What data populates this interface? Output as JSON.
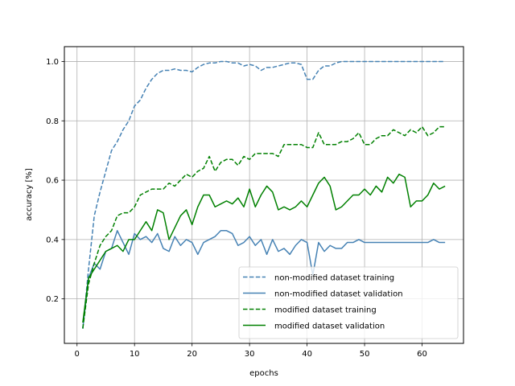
{
  "chart_data": {
    "type": "line",
    "title": "",
    "xlabel": "epochs",
    "ylabel": "accuracy [%]",
    "xlim": [
      -2.2,
      67.2
    ],
    "ylim": [
      0.05,
      1.05
    ],
    "xticks": [
      0,
      10,
      20,
      30,
      40,
      50,
      60
    ],
    "yticks": [
      0.2,
      0.4,
      0.6,
      0.8,
      1.0
    ],
    "xtick_labels": [
      "0",
      "10",
      "20",
      "30",
      "40",
      "50",
      "60"
    ],
    "ytick_labels": [
      "0.2",
      "0.4",
      "0.6",
      "0.8",
      "1.0"
    ],
    "grid": true,
    "legend_position": "lower-right",
    "x": [
      1,
      2,
      3,
      4,
      5,
      6,
      7,
      8,
      9,
      10,
      11,
      12,
      13,
      14,
      15,
      16,
      17,
      18,
      19,
      20,
      21,
      22,
      23,
      24,
      25,
      26,
      27,
      28,
      29,
      30,
      31,
      32,
      33,
      34,
      35,
      36,
      37,
      38,
      39,
      40,
      41,
      42,
      43,
      44,
      45,
      46,
      47,
      48,
      49,
      50,
      51,
      52,
      53,
      54,
      55,
      56,
      57,
      58,
      59,
      60,
      61,
      62,
      63,
      64
    ],
    "series": [
      {
        "name": "non-modified dataset training",
        "color": "#4682b4",
        "dash": "dashed",
        "values": [
          0.1,
          0.3,
          0.48,
          0.56,
          0.63,
          0.7,
          0.73,
          0.77,
          0.8,
          0.85,
          0.87,
          0.91,
          0.94,
          0.96,
          0.97,
          0.97,
          0.975,
          0.97,
          0.97,
          0.965,
          0.98,
          0.99,
          0.995,
          0.995,
          1.0,
          1.0,
          0.995,
          0.995,
          0.985,
          0.99,
          0.985,
          0.97,
          0.98,
          0.98,
          0.985,
          0.99,
          0.995,
          0.995,
          0.99,
          0.94,
          0.94,
          0.97,
          0.985,
          0.985,
          0.995,
          1.0,
          1.0,
          1.0,
          1.0,
          1.0,
          1.0,
          1.0,
          1.0,
          1.0,
          1.0,
          1.0,
          1.0,
          1.0,
          1.0,
          1.0,
          1.0,
          1.0,
          1.0,
          1.0
        ]
      },
      {
        "name": "non-modified dataset validation",
        "color": "#4682b4",
        "dash": "solid",
        "values": [
          0.1,
          0.27,
          0.32,
          0.3,
          0.36,
          0.37,
          0.43,
          0.39,
          0.35,
          0.42,
          0.4,
          0.41,
          0.39,
          0.42,
          0.37,
          0.36,
          0.41,
          0.38,
          0.4,
          0.39,
          0.35,
          0.39,
          0.4,
          0.41,
          0.43,
          0.43,
          0.42,
          0.38,
          0.39,
          0.41,
          0.38,
          0.4,
          0.35,
          0.4,
          0.36,
          0.37,
          0.35,
          0.38,
          0.4,
          0.39,
          0.28,
          0.39,
          0.36,
          0.38,
          0.37,
          0.37,
          0.39,
          0.39,
          0.4,
          0.39,
          0.39,
          0.39,
          0.39,
          0.39,
          0.39,
          0.39,
          0.39,
          0.39,
          0.39,
          0.39,
          0.39,
          0.4,
          0.39,
          0.39
        ]
      },
      {
        "name": "modified dataset training",
        "color": "#008000",
        "dash": "dashed",
        "values": [
          0.1,
          0.25,
          0.32,
          0.38,
          0.41,
          0.43,
          0.48,
          0.49,
          0.49,
          0.51,
          0.55,
          0.56,
          0.57,
          0.57,
          0.57,
          0.59,
          0.58,
          0.6,
          0.62,
          0.61,
          0.63,
          0.64,
          0.68,
          0.63,
          0.66,
          0.67,
          0.67,
          0.65,
          0.68,
          0.67,
          0.69,
          0.69,
          0.69,
          0.69,
          0.68,
          0.72,
          0.72,
          0.72,
          0.72,
          0.71,
          0.71,
          0.76,
          0.72,
          0.72,
          0.72,
          0.73,
          0.73,
          0.74,
          0.76,
          0.72,
          0.72,
          0.74,
          0.75,
          0.75,
          0.77,
          0.76,
          0.75,
          0.77,
          0.76,
          0.78,
          0.75,
          0.76,
          0.78,
          0.78
        ]
      },
      {
        "name": "modified dataset validation",
        "color": "#008000",
        "dash": "solid",
        "values": [
          0.12,
          0.27,
          0.3,
          0.33,
          0.36,
          0.37,
          0.38,
          0.36,
          0.4,
          0.4,
          0.43,
          0.46,
          0.43,
          0.5,
          0.49,
          0.4,
          0.44,
          0.48,
          0.5,
          0.45,
          0.51,
          0.55,
          0.55,
          0.51,
          0.52,
          0.53,
          0.52,
          0.54,
          0.51,
          0.57,
          0.51,
          0.55,
          0.58,
          0.56,
          0.5,
          0.51,
          0.5,
          0.51,
          0.53,
          0.51,
          0.55,
          0.59,
          0.61,
          0.58,
          0.5,
          0.51,
          0.53,
          0.55,
          0.55,
          0.57,
          0.55,
          0.58,
          0.56,
          0.61,
          0.59,
          0.62,
          0.61,
          0.51,
          0.53,
          0.53,
          0.55,
          0.59,
          0.57,
          0.58
        ]
      }
    ]
  }
}
